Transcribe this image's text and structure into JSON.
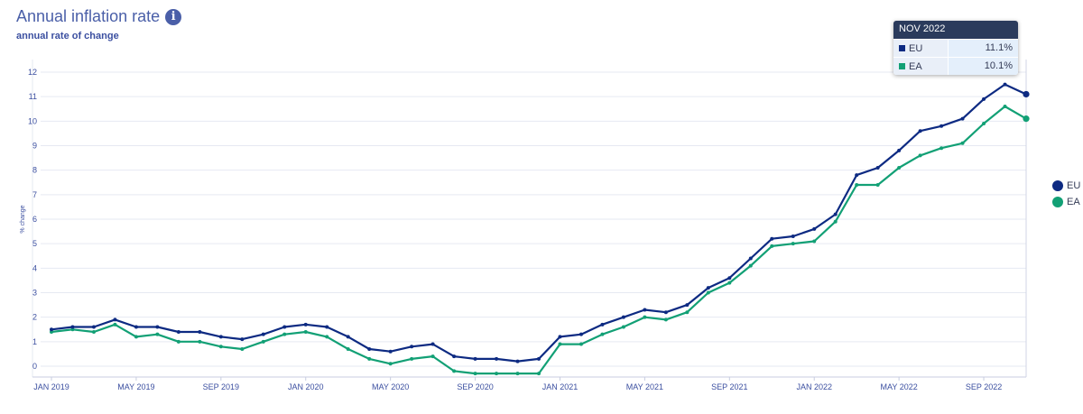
{
  "header": {
    "title": "Annual inflation rate",
    "info_symbol": "i",
    "subtitle": "annual rate of change"
  },
  "colors": {
    "eu": "#0d2a82",
    "ea": "#12a075",
    "axis": "#3b4fa0",
    "grid": "#e6e9f2"
  },
  "tooltip": {
    "date": "NOV 2022",
    "rows": [
      {
        "name": "EU",
        "value": "11.1%"
      },
      {
        "name": "EA",
        "value": "10.1%"
      }
    ]
  },
  "legend": [
    {
      "name": "EU"
    },
    {
      "name": "EA"
    }
  ],
  "chart_data": {
    "type": "line",
    "title": "Annual inflation rate",
    "subtitle": "annual rate of change",
    "xlabel": "",
    "ylabel": "% change",
    "ylim": [
      0,
      12
    ],
    "yticks": [
      0,
      1,
      2,
      3,
      4,
      5,
      6,
      7,
      8,
      9,
      10,
      11,
      12
    ],
    "grid": true,
    "legend_position": "right",
    "x_tick_labels": [
      {
        "index": 0,
        "label": "JAN 2019"
      },
      {
        "index": 4,
        "label": "MAY 2019"
      },
      {
        "index": 8,
        "label": "SEP 2019"
      },
      {
        "index": 12,
        "label": "JAN 2020"
      },
      {
        "index": 16,
        "label": "MAY 2020"
      },
      {
        "index": 20,
        "label": "SEP 2020"
      },
      {
        "index": 24,
        "label": "JAN 2021"
      },
      {
        "index": 28,
        "label": "MAY 2021"
      },
      {
        "index": 32,
        "label": "SEP 2021"
      },
      {
        "index": 36,
        "label": "JAN 2022"
      },
      {
        "index": 40,
        "label": "MAY 2022"
      },
      {
        "index": 44,
        "label": "SEP 2022"
      }
    ],
    "x_count": 47,
    "series": [
      {
        "name": "EU",
        "values": [
          1.5,
          1.6,
          1.6,
          1.9,
          1.6,
          1.6,
          1.4,
          1.4,
          1.2,
          1.1,
          1.3,
          1.6,
          1.7,
          1.6,
          1.2,
          0.7,
          0.6,
          0.8,
          0.9,
          0.4,
          0.3,
          0.3,
          0.2,
          0.3,
          1.2,
          1.3,
          1.7,
          2.0,
          2.3,
          2.2,
          2.5,
          3.2,
          3.6,
          4.4,
          5.2,
          5.3,
          5.6,
          6.2,
          7.8,
          8.1,
          8.8,
          9.6,
          9.8,
          10.1,
          10.9,
          11.5,
          11.1
        ]
      },
      {
        "name": "EA",
        "values": [
          1.4,
          1.5,
          1.4,
          1.7,
          1.2,
          1.3,
          1.0,
          1.0,
          0.8,
          0.7,
          1.0,
          1.3,
          1.4,
          1.2,
          0.7,
          0.3,
          0.1,
          0.3,
          0.4,
          -0.2,
          -0.3,
          -0.3,
          -0.3,
          -0.3,
          0.9,
          0.9,
          1.3,
          1.6,
          2.0,
          1.9,
          2.2,
          3.0,
          3.4,
          4.1,
          4.9,
          5.0,
          5.1,
          5.9,
          7.4,
          7.4,
          8.1,
          8.6,
          8.9,
          9.1,
          9.9,
          10.6,
          10.1
        ]
      }
    ]
  }
}
